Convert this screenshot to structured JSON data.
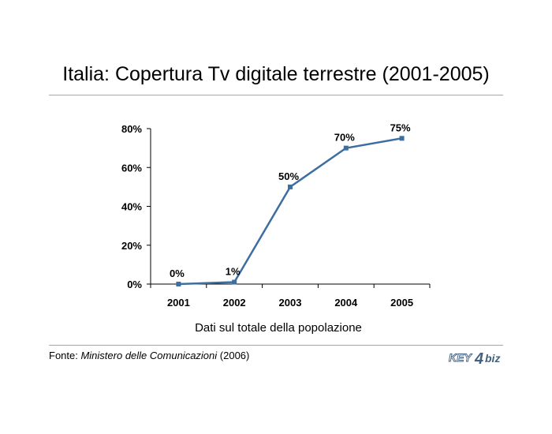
{
  "title": "Italia: Copertura Tv digitale terrestre (2001-2005)",
  "source": {
    "prefix": "Fonte: ",
    "name": "Ministero delle Comunicazioni",
    "suffix": " (2006)"
  },
  "logo": {
    "text_key": "KEY",
    "text_biz": "biz"
  },
  "colors": {
    "line": "#3c6ea0",
    "rule": "#a6a6a6",
    "axis": "#000000"
  },
  "chart_data": {
    "type": "line",
    "categories": [
      "2001",
      "2002",
      "2003",
      "2004",
      "2005"
    ],
    "values": [
      0,
      1,
      50,
      70,
      75
    ],
    "data_labels": [
      "0%",
      "1%",
      "50%",
      "70%",
      "75%"
    ],
    "ylim": [
      0,
      80
    ],
    "yticks": [
      0,
      20,
      40,
      60,
      80
    ],
    "ytick_labels": [
      "0%",
      "20%",
      "40%",
      "60%",
      "80%"
    ],
    "xlabel": "Dati sul totale della popolazione",
    "ylabel": "",
    "grid": false,
    "legend": false
  }
}
